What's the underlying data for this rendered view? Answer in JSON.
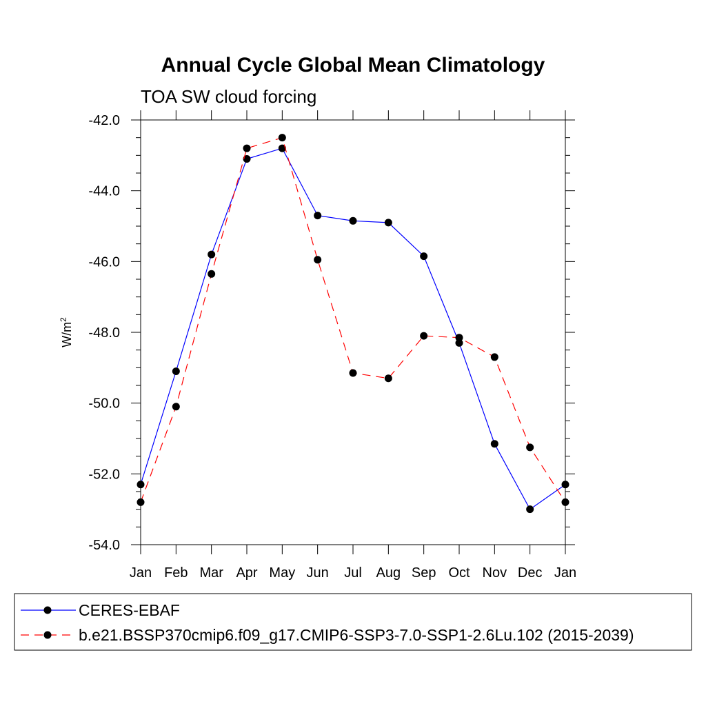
{
  "chart_data": {
    "type": "line",
    "title": "Annual Cycle Global Mean Climatology",
    "subtitle": "TOA SW cloud forcing",
    "ylabel": "W/m",
    "ylabel_sup": "2",
    "xlabel": "",
    "categories": [
      "Jan",
      "Feb",
      "Mar",
      "Apr",
      "May",
      "Jun",
      "Jul",
      "Aug",
      "Sep",
      "Oct",
      "Nov",
      "Dec",
      "Jan"
    ],
    "ylim": [
      -54.0,
      -42.0
    ],
    "yticks": [
      -54.0,
      -52.0,
      -50.0,
      -48.0,
      -46.0,
      -44.0,
      -42.0
    ],
    "ytick_labels": [
      "-54.0",
      "-52.0",
      "-50.0",
      "-48.0",
      "-46.0",
      "-44.0",
      "-42.0"
    ],
    "grid": false,
    "legend_position": "bottom",
    "series": [
      {
        "name": "CERES-EBAF",
        "color": "#0000ff",
        "dash": "solid",
        "values": [
          -52.3,
          -49.1,
          -45.8,
          -43.1,
          -42.8,
          -44.7,
          -44.85,
          -44.9,
          -45.85,
          -48.3,
          -51.15,
          -53.0,
          -52.3
        ]
      },
      {
        "name": "b.e21.BSSP370cmip6.f09_g17.CMIP6-SSP3-7.0-SSP1-2.6Lu.102 (2015-2039)",
        "color": "#ff0000",
        "dash": "dashed",
        "values": [
          -52.8,
          -50.1,
          -46.35,
          -42.8,
          -42.5,
          -45.95,
          -49.15,
          -49.3,
          -48.1,
          -48.15,
          -48.7,
          -51.25,
          -52.8
        ]
      }
    ]
  }
}
